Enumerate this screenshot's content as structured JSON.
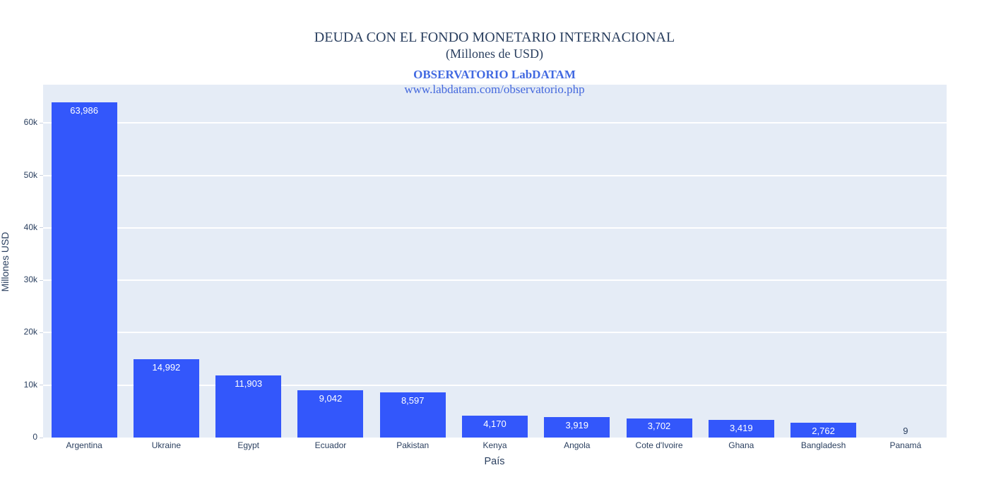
{
  "header": {
    "title_line1": "DEUDA CON EL FONDO MONETARIO INTERNACIONAL",
    "title_line2": "(Millones de USD)",
    "subtitle": "OBSERVATORIO LabDATAM",
    "url": "www.labdatam.com/observatorio.php"
  },
  "colors": {
    "bar": "#3357fb",
    "plot_background": "#e5ecf6",
    "gridline": "#ffffff",
    "title_text": "#2a3f5f",
    "accent_blue": "#4169e1",
    "axis_text": "#2a3f5f",
    "bar_label_inside": "#ffffff"
  },
  "chart_data": {
    "type": "bar",
    "title": "DEUDA CON EL FONDO MONETARIO INTERNACIONAL (Millones de USD)",
    "subtitle": "OBSERVATORIO LabDATAM",
    "annotation_url": "www.labdatam.com/observatorio.php",
    "xlabel": "País",
    "ylabel": "Millones USD",
    "categories": [
      "Argentina",
      "Ukraine",
      "Egypt",
      "Ecuador",
      "Pakistan",
      "Kenya",
      "Angola",
      "Cote d'Ivoire",
      "Ghana",
      "Bangladesh",
      "Panamá"
    ],
    "values": [
      63986,
      14992,
      11903,
      9042,
      8597,
      4170,
      3919,
      3702,
      3419,
      2762,
      9
    ],
    "value_labels": [
      "63,986",
      "14,992",
      "11,903",
      "9,042",
      "8,597",
      "4,170",
      "3,919",
      "3,702",
      "3,419",
      "2,762",
      "9"
    ],
    "ylim": [
      0,
      67300
    ],
    "yticks": [
      {
        "value": 0,
        "label": "0"
      },
      {
        "value": 10000,
        "label": "10k"
      },
      {
        "value": 20000,
        "label": "20k"
      },
      {
        "value": 30000,
        "label": "30k"
      },
      {
        "value": 40000,
        "label": "40k"
      },
      {
        "value": 50000,
        "label": "50k"
      },
      {
        "value": 60000,
        "label": "60k"
      }
    ],
    "grid": true,
    "legend": false,
    "bar_gap_fraction": 0.2
  }
}
